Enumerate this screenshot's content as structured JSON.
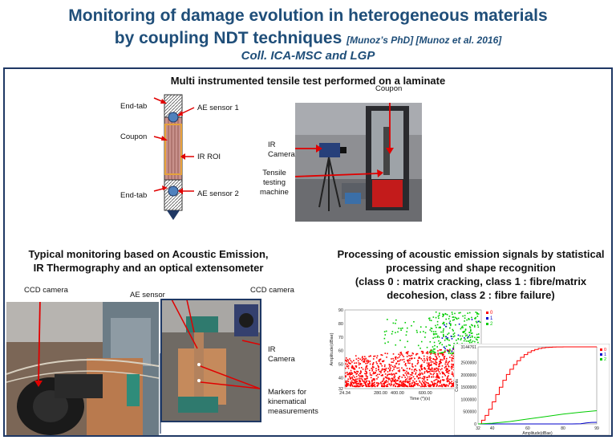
{
  "header": {
    "title_line1": "Monitoring of damage evolution in heterogeneous materials",
    "title_line2": "by coupling NDT techniques",
    "title_refs": "[Munoz’s PhD] [Munoz et al. 2016]",
    "title_line3": "Coll. ICA-MSC and LGP"
  },
  "section_top": {
    "title": "Multi instrumented tensile test performed on a laminate",
    "specimen_labels": {
      "end_tab_top": "End-tab",
      "coupon": "Coupon",
      "end_tab_bottom": "End-tab",
      "ae_sensor_1": "AE sensor 1",
      "ir_roi": "IR ROI",
      "ae_sensor_2": "AE sensor 2"
    },
    "photo_labels": {
      "coupon": "Coupon",
      "ir_camera": "IR Camera",
      "tensile_machine": "Tensile testing machine"
    }
  },
  "section_left": {
    "title_line1": "Typical monitoring based on Acoustic Emission,",
    "title_line2": "IR Thermography and an optical extensometer",
    "labels": {
      "ccd_camera_left": "CCD camera",
      "ae_sensor": "AE sensor",
      "ccd_camera_right": "CCD camera",
      "ir_camera": "IR Camera",
      "markers": "Markers for kinematical measurements"
    }
  },
  "section_right": {
    "title_line1": "Processing of acoustic emission signals by statistical",
    "title_line2": "processing and shape recognition",
    "title_line3": "(class 0 : matrix cracking, class 1 : fibre/matrix",
    "title_line4": "decohesion, class 2 : fibre failure)"
  },
  "chart_data": [
    {
      "type": "scatter",
      "xlabel": "Time (*)(s)",
      "ylabel": "Amplitude(dBae)",
      "xlim": [
        24.34,
        1000
      ],
      "ylim": [
        32,
        90
      ],
      "x_ticks": [
        "24.34",
        "280.00",
        "400.00",
        "600.00"
      ],
      "y_ticks": [
        "90",
        "80",
        "70",
        "60",
        "50",
        "40",
        "32"
      ],
      "series": [
        {
          "name": "0",
          "color": "#ff0000"
        },
        {
          "name": "1",
          "color": "#0000cc"
        },
        {
          "name": "2",
          "color": "#00cc00"
        }
      ]
    },
    {
      "type": "line",
      "xlabel": "Amplitude(dBae)",
      "ylabel": "Counts",
      "xlim": [
        32,
        99
      ],
      "ylim": [
        0,
        3144761
      ],
      "x_ticks": [
        "32",
        "40",
        "60",
        "80",
        "99"
      ],
      "y_ticks": [
        "3144761",
        "2500000",
        "2000000",
        "1500000",
        "1000000",
        "500000",
        "0"
      ],
      "series": [
        {
          "name": "0",
          "color": "#ff0000",
          "x": [
            32,
            34,
            36,
            38,
            40,
            42,
            44,
            46,
            48,
            50,
            52,
            54,
            56,
            58,
            60,
            62,
            64,
            66,
            68,
            70,
            72,
            74,
            76,
            80,
            85,
            90,
            95,
            99
          ],
          "values": [
            0,
            150000,
            350000,
            600000,
            900000,
            1200000,
            1500000,
            1780000,
            2020000,
            2230000,
            2420000,
            2580000,
            2720000,
            2830000,
            2920000,
            2990000,
            3040000,
            3080000,
            3105000,
            3120000,
            3130000,
            3136000,
            3140000,
            3143000,
            3144000,
            3144500,
            3144700,
            3144761
          ]
        },
        {
          "name": "1",
          "color": "#0000cc",
          "x": [
            32,
            85,
            90,
            93,
            96,
            99
          ],
          "values": [
            0,
            0,
            10000,
            40000,
            60000,
            65000
          ]
        },
        {
          "name": "2",
          "color": "#00cc00",
          "x": [
            32,
            40,
            50,
            60,
            70,
            80,
            90,
            99
          ],
          "values": [
            0,
            30000,
            100000,
            200000,
            300000,
            400000,
            480000,
            540000
          ]
        }
      ]
    }
  ]
}
